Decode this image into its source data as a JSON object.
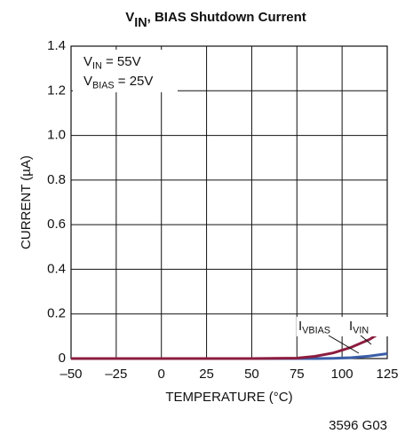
{
  "chart_data": {
    "type": "line",
    "title_parts": [
      "V",
      "IN",
      ", BIAS Shutdown Current"
    ],
    "annotations": [
      [
        "V",
        "IN",
        " = 55V"
      ],
      [
        "V",
        "BIAS",
        " = 25V"
      ]
    ],
    "xlabel": "TEMPERATURE (°C)",
    "ylabel": "CURRENT (µA)",
    "footnote": "3596 G03",
    "x": [
      -50,
      -25,
      0,
      25,
      50,
      75,
      85,
      95,
      105,
      115,
      125
    ],
    "series": [
      {
        "name_parts": [
          "I",
          "VBIAS"
        ],
        "color": "#3b5ea8",
        "values": [
          0,
          0,
          0,
          0,
          0,
          0,
          0,
          0.001,
          0.004,
          0.011,
          0.022
        ]
      },
      {
        "name_parts": [
          "I",
          "VIN"
        ],
        "color": "#8c1c3f",
        "values": [
          0,
          0,
          0,
          0,
          0,
          0.002,
          0.01,
          0.025,
          0.05,
          0.085,
          0.135
        ]
      }
    ],
    "xlim": [
      -50,
      125
    ],
    "xticks": [
      {
        "value": -50,
        "label": "–50"
      },
      {
        "value": -25,
        "label": "–25"
      },
      0,
      25,
      50,
      75,
      100,
      125
    ],
    "ylim": [
      0,
      1.4
    ],
    "yticks": [
      0,
      0.2,
      0.4,
      0.6,
      0.8,
      {
        "value": 1,
        "label": "1.0"
      },
      1.2,
      1.4
    ],
    "grid": true
  }
}
